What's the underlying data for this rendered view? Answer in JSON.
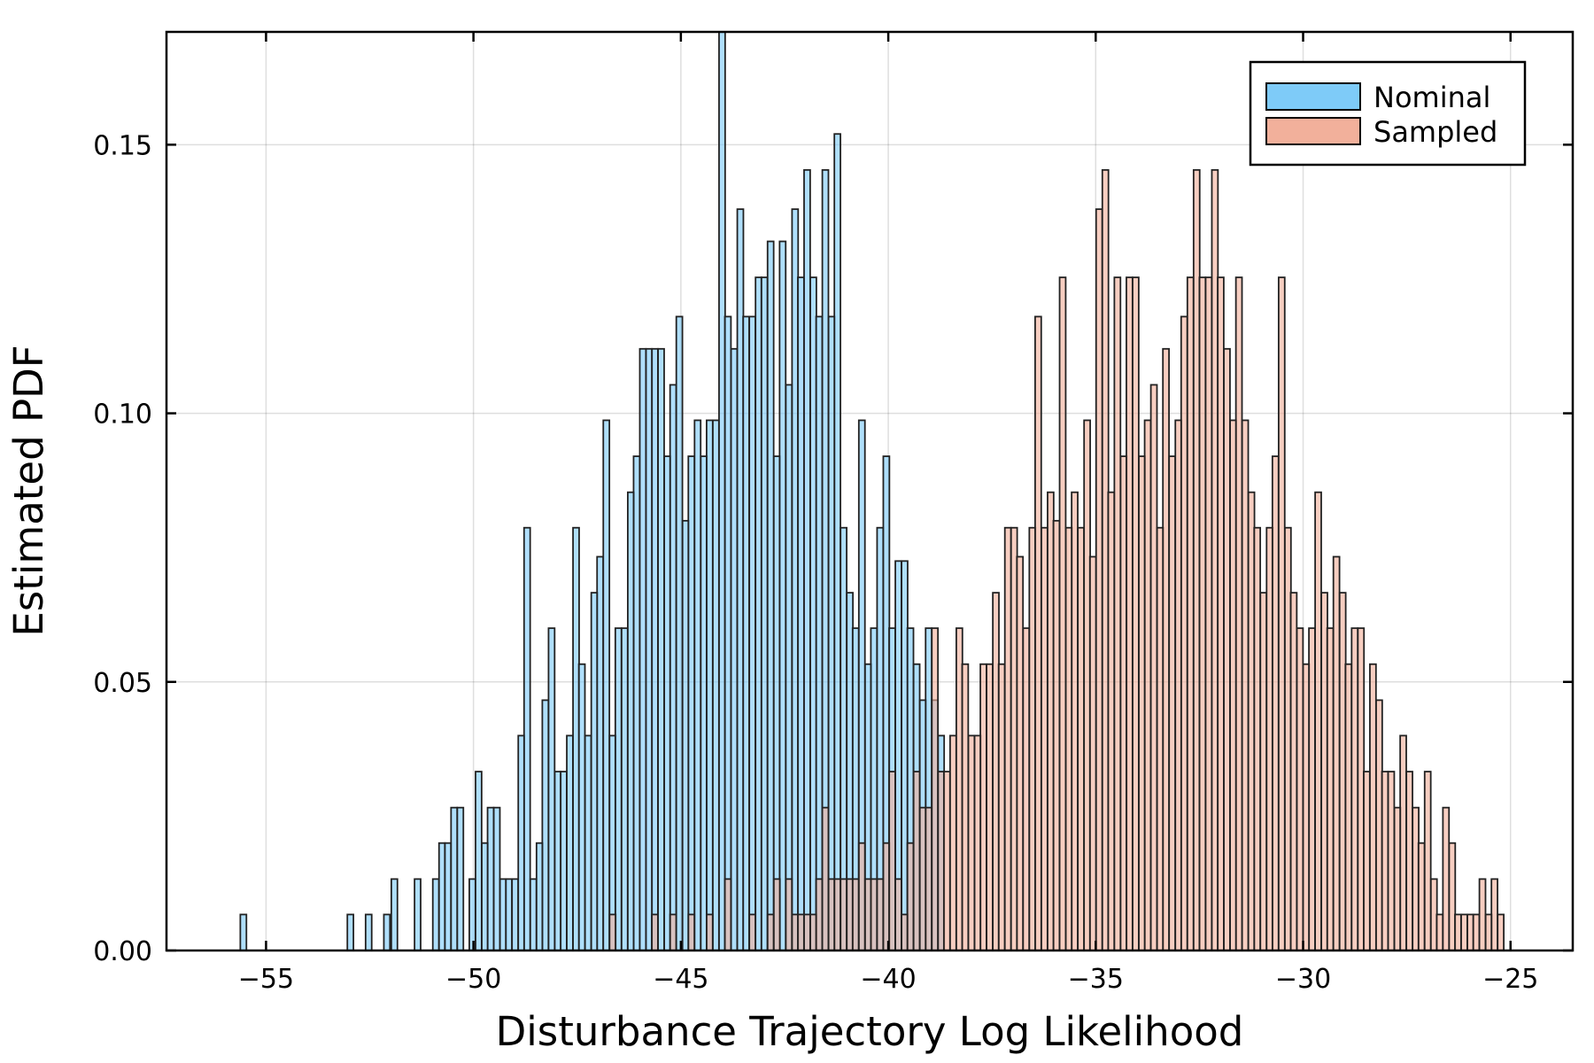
{
  "chart_data": {
    "type": "bar",
    "subtype": "overlapping histogram",
    "title": "",
    "xlabel": "Disturbance Trajectory Log Likelihood",
    "ylabel": "Estimated PDF",
    "xlim": [
      -57.4,
      -23.5
    ],
    "ylim": [
      0.0,
      0.171
    ],
    "xticks": [
      -55,
      -50,
      -45,
      -40,
      -35,
      -30,
      -25
    ],
    "xtick_labels": [
      "−55",
      "−50",
      "−45",
      "−40",
      "−35",
      "−30",
      "−25"
    ],
    "yticks": [
      0.0,
      0.05,
      0.1,
      0.15
    ],
    "ytick_labels": [
      "0.00",
      "0.05",
      "0.10",
      "0.15"
    ],
    "grid": true,
    "legend_position": "top-right",
    "bin_width": 0.147,
    "series": [
      {
        "name": "Nominal",
        "color": "#7ecbf8",
        "bins": [
          [
            -55.62,
            0.0067
          ],
          [
            -53.04,
            0.0067
          ],
          [
            -52.6,
            0.0067
          ],
          [
            -52.16,
            0.0067
          ],
          [
            -51.98,
            0.0133
          ],
          [
            -51.42,
            0.0133
          ],
          [
            -50.98,
            0.0133
          ],
          [
            -50.83,
            0.02
          ],
          [
            -50.69,
            0.02
          ],
          [
            -50.54,
            0.0266
          ],
          [
            -50.39,
            0.0266
          ],
          [
            -50.1,
            0.0133
          ],
          [
            -49.95,
            0.0333
          ],
          [
            -49.8,
            0.02
          ],
          [
            -49.66,
            0.0266
          ],
          [
            -49.51,
            0.0266
          ],
          [
            -49.36,
            0.0133
          ],
          [
            -49.22,
            0.0133
          ],
          [
            -49.07,
            0.0133
          ],
          [
            -48.92,
            0.04
          ],
          [
            -48.78,
            0.0787
          ],
          [
            -48.63,
            0.0133
          ],
          [
            -48.48,
            0.02
          ],
          [
            -48.34,
            0.0466
          ],
          [
            -48.19,
            0.06
          ],
          [
            -48.04,
            0.0333
          ],
          [
            -47.9,
            0.0333
          ],
          [
            -47.75,
            0.04
          ],
          [
            -47.6,
            0.0787
          ],
          [
            -47.46,
            0.0533
          ],
          [
            -47.31,
            0.04
          ],
          [
            -47.16,
            0.0666
          ],
          [
            -47.02,
            0.0733
          ],
          [
            -46.87,
            0.0987
          ],
          [
            -46.72,
            0.04
          ],
          [
            -46.58,
            0.06
          ],
          [
            -46.43,
            0.06
          ],
          [
            -46.28,
            0.0853
          ],
          [
            -46.14,
            0.092
          ],
          [
            -45.99,
            0.112
          ],
          [
            -45.84,
            0.112
          ],
          [
            -45.7,
            0.112
          ],
          [
            -45.55,
            0.112
          ],
          [
            -45.4,
            0.092
          ],
          [
            -45.26,
            0.1053
          ],
          [
            -45.11,
            0.118
          ],
          [
            -44.96,
            0.08
          ],
          [
            -44.82,
            0.092
          ],
          [
            -44.67,
            0.0987
          ],
          [
            -44.52,
            0.092
          ],
          [
            -44.38,
            0.0987
          ],
          [
            -44.23,
            0.0987
          ],
          [
            -44.08,
            0.171
          ],
          [
            -43.94,
            0.118
          ],
          [
            -43.79,
            0.112
          ],
          [
            -43.64,
            0.138
          ],
          [
            -43.5,
            0.118
          ],
          [
            -43.35,
            0.118
          ],
          [
            -43.2,
            0.1253
          ],
          [
            -43.06,
            0.1253
          ],
          [
            -42.91,
            0.132
          ],
          [
            -42.76,
            0.092
          ],
          [
            -42.62,
            0.132
          ],
          [
            -42.47,
            0.1053
          ],
          [
            -42.32,
            0.138
          ],
          [
            -42.18,
            0.1253
          ],
          [
            -42.03,
            0.1453
          ],
          [
            -41.88,
            0.1253
          ],
          [
            -41.74,
            0.118
          ],
          [
            -41.59,
            0.1453
          ],
          [
            -41.44,
            0.118
          ],
          [
            -41.3,
            0.152
          ],
          [
            -41.15,
            0.0787
          ],
          [
            -41.0,
            0.0666
          ],
          [
            -40.86,
            0.06
          ],
          [
            -40.71,
            0.0987
          ],
          [
            -40.56,
            0.0533
          ],
          [
            -40.42,
            0.06
          ],
          [
            -40.27,
            0.0787
          ],
          [
            -40.12,
            0.092
          ],
          [
            -39.98,
            0.06
          ],
          [
            -39.83,
            0.0725
          ],
          [
            -39.68,
            0.0725
          ],
          [
            -39.54,
            0.06
          ],
          [
            -39.39,
            0.0533
          ],
          [
            -39.24,
            0.0466
          ],
          [
            -39.1,
            0.06
          ],
          [
            -38.95,
            0.0466
          ],
          [
            -38.8,
            0.04
          ]
        ]
      },
      {
        "name": "Sampled",
        "color": "#f2b09b",
        "bins": [
          [
            -46.72,
            0.0067
          ],
          [
            -45.7,
            0.0067
          ],
          [
            -45.26,
            0.0067
          ],
          [
            -44.82,
            0.0067
          ],
          [
            -44.38,
            0.0067
          ],
          [
            -43.94,
            0.0133
          ],
          [
            -43.35,
            0.0067
          ],
          [
            -42.91,
            0.0067
          ],
          [
            -42.76,
            0.0133
          ],
          [
            -42.47,
            0.0133
          ],
          [
            -42.32,
            0.0067
          ],
          [
            -42.18,
            0.0067
          ],
          [
            -42.03,
            0.0067
          ],
          [
            -41.88,
            0.0067
          ],
          [
            -41.74,
            0.0133
          ],
          [
            -41.59,
            0.0266
          ],
          [
            -41.44,
            0.0133
          ],
          [
            -41.3,
            0.0133
          ],
          [
            -41.15,
            0.0133
          ],
          [
            -41.0,
            0.0133
          ],
          [
            -40.86,
            0.0133
          ],
          [
            -40.71,
            0.02
          ],
          [
            -40.56,
            0.0133
          ],
          [
            -40.42,
            0.0133
          ],
          [
            -40.27,
            0.0133
          ],
          [
            -40.12,
            0.02
          ],
          [
            -39.98,
            0.0333
          ],
          [
            -39.83,
            0.0133
          ],
          [
            -39.68,
            0.0067
          ],
          [
            -39.54,
            0.02
          ],
          [
            -39.39,
            0.0333
          ],
          [
            -39.24,
            0.0266
          ],
          [
            -39.1,
            0.0266
          ],
          [
            -38.95,
            0.06
          ],
          [
            -38.8,
            0.0333
          ],
          [
            -38.66,
            0.0333
          ],
          [
            -38.51,
            0.04
          ],
          [
            -38.36,
            0.06
          ],
          [
            -38.22,
            0.0533
          ],
          [
            -38.07,
            0.04
          ],
          [
            -37.92,
            0.04
          ],
          [
            -37.78,
            0.0533
          ],
          [
            -37.63,
            0.0533
          ],
          [
            -37.48,
            0.0666
          ],
          [
            -37.34,
            0.0533
          ],
          [
            -37.19,
            0.0787
          ],
          [
            -37.04,
            0.0787
          ],
          [
            -36.9,
            0.0733
          ],
          [
            -36.75,
            0.06
          ],
          [
            -36.6,
            0.0787
          ],
          [
            -36.46,
            0.118
          ],
          [
            -36.31,
            0.0787
          ],
          [
            -36.16,
            0.0853
          ],
          [
            -36.02,
            0.08
          ],
          [
            -35.87,
            0.1253
          ],
          [
            -35.72,
            0.0787
          ],
          [
            -35.58,
            0.0853
          ],
          [
            -35.43,
            0.0787
          ],
          [
            -35.28,
            0.0987
          ],
          [
            -35.14,
            0.0733
          ],
          [
            -34.99,
            0.138
          ],
          [
            -34.84,
            0.1453
          ],
          [
            -34.7,
            0.0853
          ],
          [
            -34.55,
            0.1253
          ],
          [
            -34.4,
            0.092
          ],
          [
            -34.26,
            0.1253
          ],
          [
            -34.11,
            0.1253
          ],
          [
            -33.96,
            0.092
          ],
          [
            -33.82,
            0.0987
          ],
          [
            -33.67,
            0.1053
          ],
          [
            -33.52,
            0.0787
          ],
          [
            -33.38,
            0.112
          ],
          [
            -33.23,
            0.092
          ],
          [
            -33.08,
            0.0987
          ],
          [
            -32.94,
            0.118
          ],
          [
            -32.79,
            0.1253
          ],
          [
            -32.64,
            0.1453
          ],
          [
            -32.5,
            0.1253
          ],
          [
            -32.35,
            0.1253
          ],
          [
            -32.2,
            0.1453
          ],
          [
            -32.06,
            0.1253
          ],
          [
            -31.91,
            0.112
          ],
          [
            -31.76,
            0.0987
          ],
          [
            -31.62,
            0.1253
          ],
          [
            -31.47,
            0.0987
          ],
          [
            -31.32,
            0.0853
          ],
          [
            -31.18,
            0.0787
          ],
          [
            -31.03,
            0.0666
          ],
          [
            -30.88,
            0.0787
          ],
          [
            -30.74,
            0.092
          ],
          [
            -30.59,
            0.1253
          ],
          [
            -30.44,
            0.0787
          ],
          [
            -30.3,
            0.0666
          ],
          [
            -30.15,
            0.06
          ],
          [
            -30.0,
            0.0533
          ],
          [
            -29.86,
            0.06
          ],
          [
            -29.71,
            0.0853
          ],
          [
            -29.56,
            0.0666
          ],
          [
            -29.42,
            0.06
          ],
          [
            -29.27,
            0.0733
          ],
          [
            -29.12,
            0.0666
          ],
          [
            -28.98,
            0.0533
          ],
          [
            -28.83,
            0.06
          ],
          [
            -28.68,
            0.06
          ],
          [
            -28.54,
            0.0333
          ],
          [
            -28.39,
            0.0533
          ],
          [
            -28.24,
            0.0466
          ],
          [
            -28.1,
            0.0333
          ],
          [
            -27.95,
            0.0333
          ],
          [
            -27.8,
            0.0266
          ],
          [
            -27.66,
            0.04
          ],
          [
            -27.51,
            0.0333
          ],
          [
            -27.36,
            0.0266
          ],
          [
            -27.22,
            0.02
          ],
          [
            -27.07,
            0.0333
          ],
          [
            -26.92,
            0.0133
          ],
          [
            -26.78,
            0.0067
          ],
          [
            -26.63,
            0.0266
          ],
          [
            -26.48,
            0.02
          ],
          [
            -26.34,
            0.0067
          ],
          [
            -26.19,
            0.0067
          ],
          [
            -26.04,
            0.0067
          ],
          [
            -25.9,
            0.0067
          ],
          [
            -25.75,
            0.0133
          ],
          [
            -25.6,
            0.0067
          ],
          [
            -25.46,
            0.0133
          ],
          [
            -25.31,
            0.0067
          ]
        ]
      }
    ]
  }
}
